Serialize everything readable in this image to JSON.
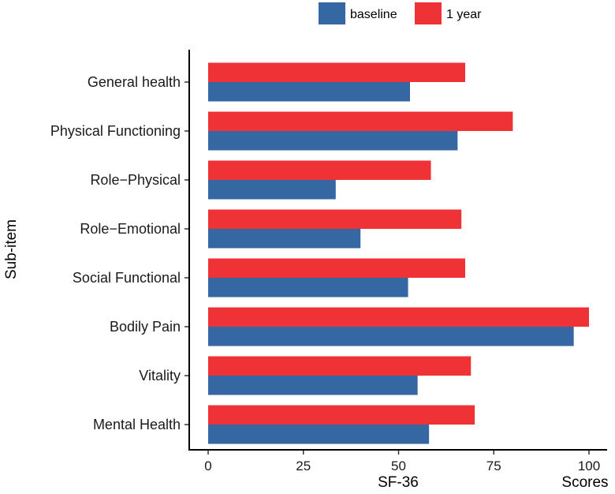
{
  "chart_data": {
    "type": "bar",
    "orientation": "horizontal",
    "title": "",
    "xlabel": "SF-36",
    "xlabel_secondary": "Scores",
    "ylabel": "Sub-item",
    "xlim": [
      0,
      100
    ],
    "xticks": [
      0,
      25,
      50,
      75,
      100
    ],
    "grid": false,
    "legend_position": "top",
    "categories": [
      "General health",
      "Physical Functioning",
      "Role−Physical",
      "Role−Emotional",
      "Social Functional",
      "Bodily Pain",
      "Vitality",
      "Mental Health"
    ],
    "series": [
      {
        "name": "baseline",
        "color": "#3568a3",
        "values": [
          53,
          65.5,
          33.5,
          40,
          52.5,
          96,
          55,
          58
        ]
      },
      {
        "name": "1 year",
        "color": "#ee3236",
        "values": [
          67.5,
          80,
          58.5,
          66.5,
          67.5,
          100,
          69,
          70
        ]
      }
    ]
  }
}
